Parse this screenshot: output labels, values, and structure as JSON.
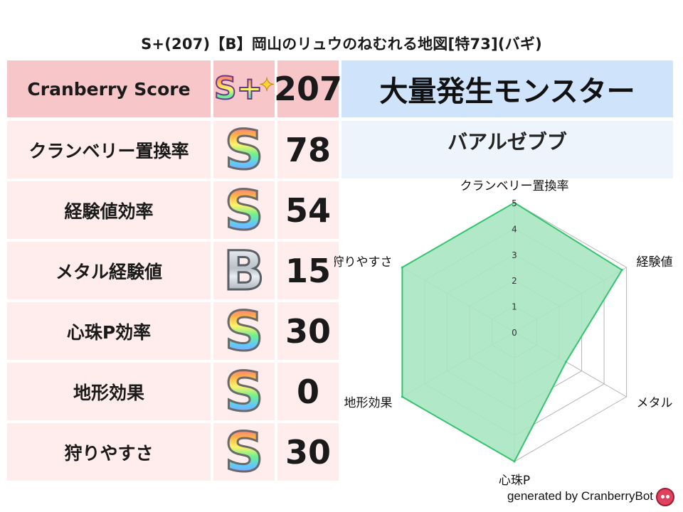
{
  "title": "S+(207)【B】岡山のリュウのねむれる地図[特73](バギ)",
  "header": {
    "label": "Cranberry Score",
    "rank": "S+",
    "score": "207"
  },
  "rows": [
    {
      "label": "クランベリー置換率",
      "rank": "S",
      "score": "78"
    },
    {
      "label": "経験値効率",
      "rank": "S",
      "score": "54"
    },
    {
      "label": "メタル経験値",
      "rank": "B",
      "score": "15"
    },
    {
      "label": "心珠P効率",
      "rank": "S",
      "score": "30"
    },
    {
      "label": "地形効果",
      "rank": "S",
      "score": "0"
    },
    {
      "label": "狩りやすさ",
      "rank": "S",
      "score": "30"
    }
  ],
  "monster_panel": {
    "heading": "大量発生モンスター",
    "name": "バアルゼブブ"
  },
  "colors": {
    "label_bg": "#ffecec",
    "header_label_bg": "#f7c6c8",
    "panel_bg": "#eef4fc",
    "panel_header_bg": "#cfe3fb",
    "radar_fill": "#a9e6c2",
    "radar_stroke": "#35c46d"
  },
  "chart_data": {
    "type": "radar",
    "axes": [
      "クランベリー置換率",
      "経験値",
      "メタル",
      "心珠P",
      "地形効果",
      "狩りやすさ"
    ],
    "values": [
      5,
      4.8,
      2.3,
      5,
      5,
      5
    ],
    "rmin": 0,
    "rmax": 5,
    "ticks": [
      "0",
      "1",
      "2",
      "3",
      "4",
      "5"
    ]
  },
  "footer": "generated by CranberryBot"
}
